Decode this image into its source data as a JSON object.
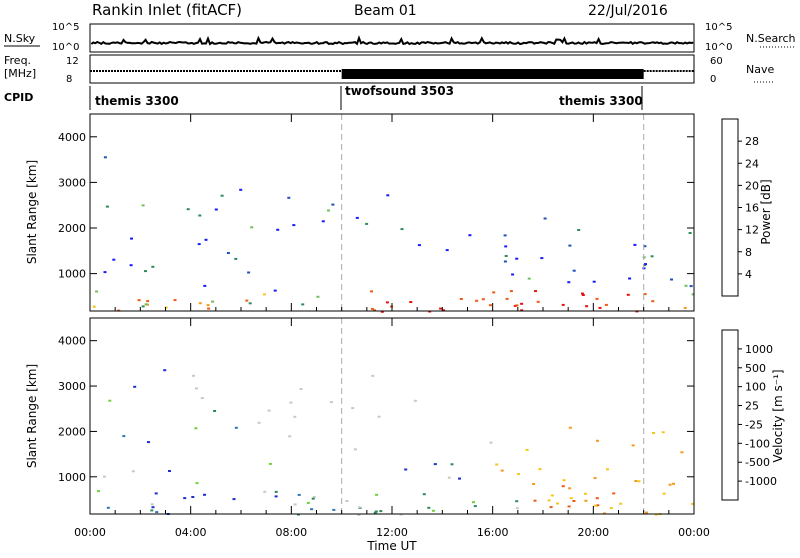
{
  "header": {
    "title": "Rankin Inlet (fitACF)",
    "beam": "Beam 01",
    "date": "22/Jul/2016"
  },
  "top_panels": {
    "nsky_label": "N.Sky",
    "nsky_ticks": [
      "10^5",
      "10^0"
    ],
    "nsearch_label": "N.Search",
    "nsearch_ticks": [
      "10^5",
      "10^0"
    ],
    "freq_label": "Freq.",
    "freq_unit": "[MHz]",
    "freq_ticks": [
      "12",
      "8"
    ],
    "nave_label": "Nave",
    "nave_ticks": [
      "60",
      "0"
    ],
    "cpid_label": "CPID",
    "cpid_segments": [
      {
        "name": "themis 3300",
        "start": 0,
        "end": 10
      },
      {
        "name": "twofsound 3503",
        "start": 10,
        "end": 22
      },
      {
        "name": "themis 3300",
        "start": 22,
        "end": 24
      }
    ]
  },
  "chart_data": [
    {
      "type": "heatmap",
      "ylabel": "Slant Range [km]",
      "xlim": [
        0,
        24
      ],
      "ylim": [
        180,
        4500
      ],
      "yticks": [
        1000,
        2000,
        3000,
        4000
      ],
      "colorbar": {
        "label": "Power [dB]",
        "ticks": [
          "4",
          "8",
          "12",
          "16",
          "20",
          "24",
          "28"
        ],
        "colors": [
          "#1a1aff",
          "#1f4fb8",
          "#2e8b57",
          "#6fbf5a",
          "#f5c518",
          "#f59a1a",
          "#f05a14",
          "#e81010"
        ]
      }
    },
    {
      "type": "heatmap",
      "ylabel": "Slant Range [km]",
      "xlabel": "Time UT",
      "xlim": [
        0,
        24
      ],
      "ylim": [
        180,
        4500
      ],
      "yticks": [
        1000,
        2000,
        3000,
        4000
      ],
      "xticks": [
        "00:00",
        "04:00",
        "08:00",
        "12:00",
        "16:00",
        "20:00",
        "00:00"
      ],
      "colorbar": {
        "label": "Velocity [m s⁻¹]",
        "ticks": [
          "1000",
          "500",
          "100",
          "25",
          "-25",
          "-100",
          "-500",
          "-1000"
        ],
        "colors": [
          "#1a2fd0",
          "#2f73b8",
          "#2e8b57",
          "#6fcf3a",
          "#c8c8c8",
          "#f5c518",
          "#f59a1a",
          "#f05a14",
          "#e81010"
        ]
      }
    }
  ]
}
